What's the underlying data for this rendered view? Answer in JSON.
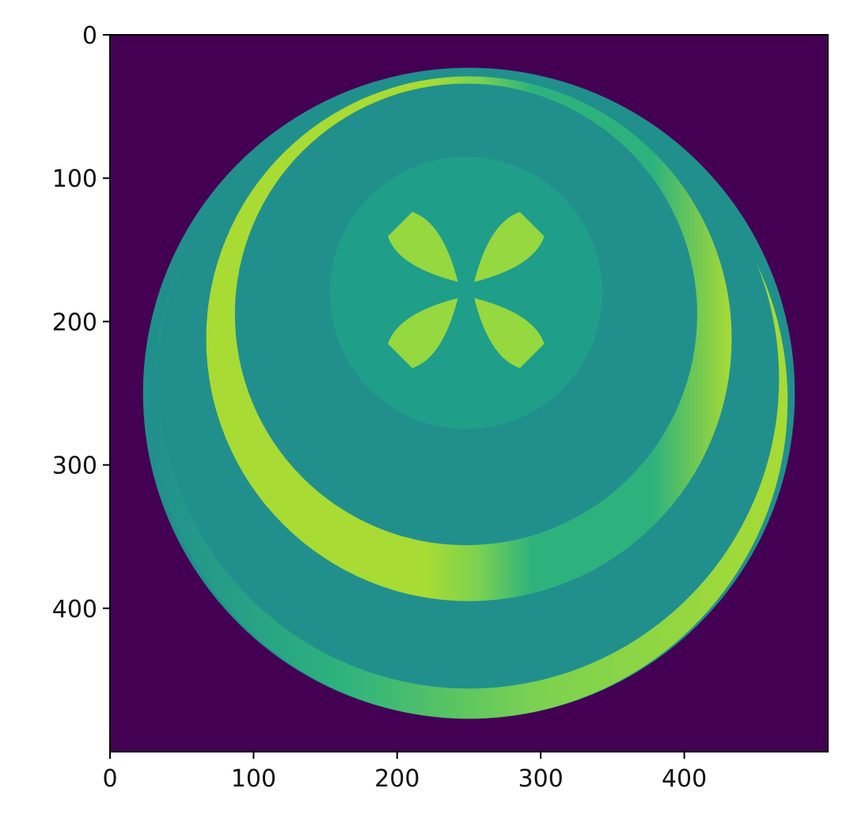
{
  "chart_data": {
    "type": "heatmap",
    "title": "",
    "xlabel": "",
    "ylabel": "",
    "colormap": "viridis",
    "image_size": [
      500,
      500
    ],
    "xlim": [
      0,
      500
    ],
    "ylim": [
      500,
      0
    ],
    "xticks": [
      0,
      100,
      200,
      300,
      400
    ],
    "yticks": [
      0,
      100,
      200,
      300,
      400
    ],
    "xtick_labels": [
      "0",
      "100",
      "200",
      "300",
      "400"
    ],
    "ytick_labels": [
      "0",
      "100",
      "200",
      "300",
      "400"
    ],
    "grid": false,
    "colors": {
      "background": "#440154",
      "disk": "#21908d",
      "ring_yellow": "#a8db34",
      "ring_green": "#2db27d",
      "inner_disk": "#1f9e89",
      "petal": "#95d840"
    },
    "regions": [
      {
        "name": "background",
        "value_color": "#440154"
      },
      {
        "name": "outer-disk",
        "center": [
          250,
          250
        ],
        "radius": 227,
        "value_color": "#21908d"
      },
      {
        "name": "thin-outer-rim",
        "center": [
          250,
          255
        ],
        "radius": 222,
        "value_color": "#a8db34"
      },
      {
        "name": "outer-ring",
        "center": [
          250,
          240
        ],
        "radius": 216,
        "value_color": "#21908d"
      },
      {
        "name": "bright-crescent-ring",
        "center": [
          250,
          212
        ],
        "radius": 183,
        "value_color": "#a8db34"
      },
      {
        "name": "inner-disk",
        "center": [
          248,
          195
        ],
        "radius": 161,
        "value_color": "#21908d"
      },
      {
        "name": "central-circle",
        "center": [
          248,
          180
        ],
        "radius": 95,
        "value_color": "#1f9e89"
      },
      {
        "name": "four-petals",
        "center": [
          248,
          178
        ],
        "value_color": "#95d840"
      }
    ]
  }
}
